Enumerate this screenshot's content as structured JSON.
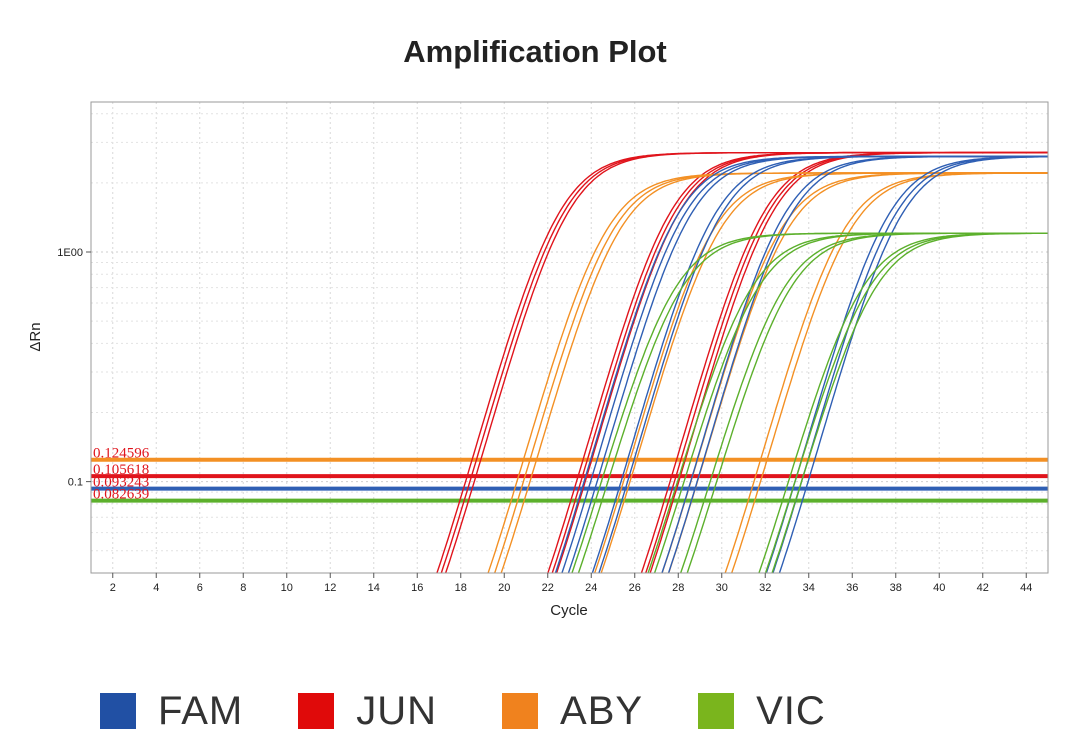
{
  "chart_data": {
    "type": "line",
    "title": "Amplification Plot",
    "xlabel": "Cycle",
    "ylabel": "ΔRn",
    "yscale": "log",
    "xlim": [
      1,
      45
    ],
    "ylim": [
      0.04,
      4.5
    ],
    "x_ticks": [
      2,
      4,
      6,
      8,
      10,
      12,
      14,
      16,
      18,
      20,
      22,
      24,
      26,
      28,
      30,
      32,
      34,
      36,
      38,
      40,
      42,
      44
    ],
    "y_ticks": [
      {
        "value": 1,
        "label": "1E00"
      },
      {
        "value": 0.1,
        "label": "0.1"
      }
    ],
    "grid": true,
    "thresholds": [
      {
        "name": "ABY",
        "value": 0.124596,
        "label": "0.124596",
        "color": "#f39024"
      },
      {
        "name": "JUN",
        "value": 0.105618,
        "label": "0.105618",
        "color": "#e0141c"
      },
      {
        "name": "FAM",
        "value": 0.093243,
        "label": "0.093243",
        "color": "#2f5fb4"
      },
      {
        "name": "VIC",
        "value": 0.082639,
        "label": "0.082639",
        "color": "#5cb02c"
      }
    ],
    "series": [
      {
        "name": "JUN",
        "color": "#e0141c",
        "plateau": 2.7,
        "midpoints": [
          22.3,
          22.5,
          22.7,
          27.4,
          27.6,
          27.8,
          31.7,
          31.9,
          32.1
        ]
      },
      {
        "name": "ABY",
        "color": "#f39024",
        "plateau": 2.2,
        "midpoints": [
          24.4,
          24.7,
          25.0,
          29.3,
          29.6,
          32.4,
          32.7,
          35.3,
          35.6
        ]
      },
      {
        "name": "FAM",
        "color": "#2f5fb4",
        "plateau": 2.6,
        "midpoints": [
          27.7,
          28.0,
          28.3,
          29.4,
          29.7,
          32.6,
          32.9,
          37.4,
          37.7,
          38.0
        ]
      },
      {
        "name": "VIC",
        "color": "#5cb02c",
        "plateau": 1.2,
        "midpoints": [
          27.5,
          27.8,
          31.0,
          31.3,
          32.5,
          32.8,
          36.1,
          36.4,
          36.7
        ]
      }
    ]
  },
  "legend": [
    {
      "label": "FAM",
      "color": "#2150a4"
    },
    {
      "label": "JUN",
      "color": "#e00a0a"
    },
    {
      "label": "ABY",
      "color": "#f0821e"
    },
    {
      "label": "VIC",
      "color": "#7ab51d"
    }
  ]
}
